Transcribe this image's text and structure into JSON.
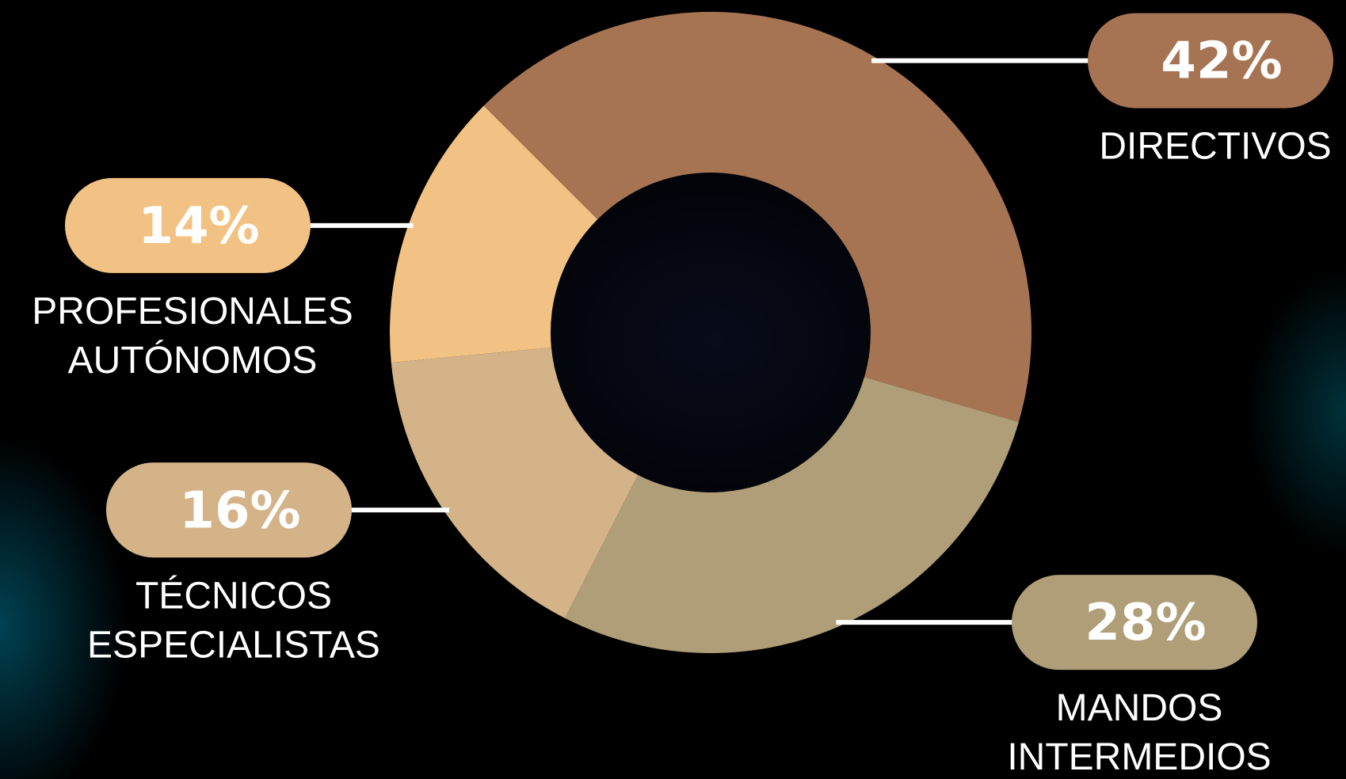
{
  "chart_data": {
    "type": "pie",
    "donut": true,
    "categories": [
      "DIRECTIVOS",
      "MANDOS INTERMEDIOS",
      "TÉCNICOS ESPECIALISTAS",
      "PROFESIONALES AUTÓNOMOS"
    ],
    "label_lines": [
      [
        "DIRECTIVOS"
      ],
      [
        "MANDOS",
        "INTERMEDIOS"
      ],
      [
        "TÉCNICOS",
        "ESPECIALISTAS"
      ],
      [
        "PROFESIONALES",
        "AUTÓNOMOS"
      ]
    ],
    "values": [
      42,
      28,
      16,
      14
    ],
    "value_labels": [
      "42%",
      "28%",
      "16%",
      "14%"
    ],
    "colors": [
      "#a67453",
      "#af9e77",
      "#d4b388",
      "#f1c283"
    ],
    "label_side": [
      "right",
      "right",
      "left",
      "left"
    ]
  }
}
